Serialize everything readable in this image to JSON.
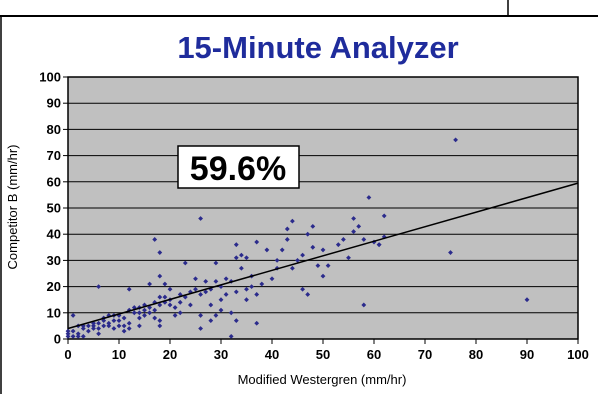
{
  "chart_data": {
    "type": "scatter",
    "title": "15-Minute Analyzer",
    "xlabel": "Modified Westergren (mm/hr)",
    "ylabel": "Competitor B (mm/hr)",
    "xlim": [
      0,
      100
    ],
    "ylim": [
      0,
      100
    ],
    "xticks": [
      0,
      10,
      20,
      30,
      40,
      50,
      60,
      70,
      80,
      90,
      100
    ],
    "yticks": [
      0,
      10,
      20,
      30,
      40,
      50,
      60,
      70,
      80,
      90,
      100
    ],
    "grid": "horizontal",
    "annotation": "59.6%",
    "colors": {
      "title": "#1f2c9c",
      "point": "#2b2b8c",
      "plot_background": "#c0c0c0",
      "trendline": "#000000"
    },
    "trendline": {
      "x": [
        0,
        100
      ],
      "y": [
        4,
        59.5
      ]
    },
    "points": [
      [
        0,
        1
      ],
      [
        0,
        2
      ],
      [
        0,
        3
      ],
      [
        1,
        1
      ],
      [
        1,
        3
      ],
      [
        1,
        9
      ],
      [
        2,
        1
      ],
      [
        2,
        2
      ],
      [
        2,
        5
      ],
      [
        3,
        1
      ],
      [
        3,
        4
      ],
      [
        3,
        5
      ],
      [
        4,
        5
      ],
      [
        4,
        3
      ],
      [
        5,
        4
      ],
      [
        5,
        5
      ],
      [
        5,
        6
      ],
      [
        6,
        2
      ],
      [
        6,
        4
      ],
      [
        6,
        6
      ],
      [
        6,
        20
      ],
      [
        7,
        5
      ],
      [
        7,
        7
      ],
      [
        7,
        8
      ],
      [
        8,
        5
      ],
      [
        8,
        6
      ],
      [
        8,
        9
      ],
      [
        9,
        4
      ],
      [
        9,
        7
      ],
      [
        9,
        9
      ],
      [
        10,
        5
      ],
      [
        10,
        7
      ],
      [
        10,
        9
      ],
      [
        11,
        3
      ],
      [
        11,
        5
      ],
      [
        11,
        8
      ],
      [
        12,
        4
      ],
      [
        12,
        6
      ],
      [
        12,
        11
      ],
      [
        12,
        19
      ],
      [
        13,
        10
      ],
      [
        13,
        12
      ],
      [
        14,
        5
      ],
      [
        14,
        8
      ],
      [
        14,
        10
      ],
      [
        14,
        12
      ],
      [
        15,
        9
      ],
      [
        15,
        11
      ],
      [
        15,
        13
      ],
      [
        16,
        10
      ],
      [
        16,
        12
      ],
      [
        16,
        21
      ],
      [
        17,
        8
      ],
      [
        17,
        11
      ],
      [
        17,
        14
      ],
      [
        17,
        38
      ],
      [
        18,
        5
      ],
      [
        18,
        7
      ],
      [
        18,
        13
      ],
      [
        18,
        16
      ],
      [
        18,
        24
      ],
      [
        18,
        33
      ],
      [
        19,
        14
      ],
      [
        19,
        16
      ],
      [
        19,
        21
      ],
      [
        20,
        13
      ],
      [
        20,
        15
      ],
      [
        20,
        19
      ],
      [
        21,
        9
      ],
      [
        21,
        12
      ],
      [
        22,
        10
      ],
      [
        22,
        14
      ],
      [
        22,
        17
      ],
      [
        23,
        16
      ],
      [
        23,
        29
      ],
      [
        24,
        13
      ],
      [
        24,
        18
      ],
      [
        25,
        19
      ],
      [
        25,
        23
      ],
      [
        26,
        4
      ],
      [
        26,
        9
      ],
      [
        26,
        17
      ],
      [
        26,
        46
      ],
      [
        27,
        18
      ],
      [
        27,
        22
      ],
      [
        28,
        7
      ],
      [
        28,
        13
      ],
      [
        28,
        19
      ],
      [
        29,
        9
      ],
      [
        29,
        22
      ],
      [
        29,
        29
      ],
      [
        30,
        11
      ],
      [
        30,
        15
      ],
      [
        30,
        20
      ],
      [
        31,
        23
      ],
      [
        31,
        17
      ],
      [
        32,
        1
      ],
      [
        32,
        10
      ],
      [
        32,
        22
      ],
      [
        33,
        7
      ],
      [
        33,
        18
      ],
      [
        33,
        31
      ],
      [
        33,
        36
      ],
      [
        34,
        27
      ],
      [
        34,
        32
      ],
      [
        35,
        15
      ],
      [
        35,
        19
      ],
      [
        35,
        31
      ],
      [
        36,
        20
      ],
      [
        36,
        24
      ],
      [
        37,
        6
      ],
      [
        37,
        17
      ],
      [
        37,
        37
      ],
      [
        38,
        21
      ],
      [
        39,
        34
      ],
      [
        40,
        23
      ],
      [
        41,
        27
      ],
      [
        41,
        30
      ],
      [
        42,
        34
      ],
      [
        43,
        38
      ],
      [
        43,
        42
      ],
      [
        44,
        27
      ],
      [
        44,
        45
      ],
      [
        45,
        30
      ],
      [
        46,
        19
      ],
      [
        46,
        32
      ],
      [
        47,
        17
      ],
      [
        47,
        40
      ],
      [
        48,
        35
      ],
      [
        48,
        43
      ],
      [
        49,
        28
      ],
      [
        50,
        24
      ],
      [
        50,
        34
      ],
      [
        51,
        28
      ],
      [
        53,
        36
      ],
      [
        54,
        38
      ],
      [
        55,
        31
      ],
      [
        56,
        41
      ],
      [
        56,
        46
      ],
      [
        57,
        43
      ],
      [
        58,
        13
      ],
      [
        58,
        38
      ],
      [
        59,
        54
      ],
      [
        60,
        37
      ],
      [
        61,
        36
      ],
      [
        61,
        36
      ],
      [
        62,
        39
      ],
      [
        62,
        47
      ],
      [
        75,
        33
      ],
      [
        76,
        76
      ],
      [
        90,
        15
      ]
    ]
  }
}
